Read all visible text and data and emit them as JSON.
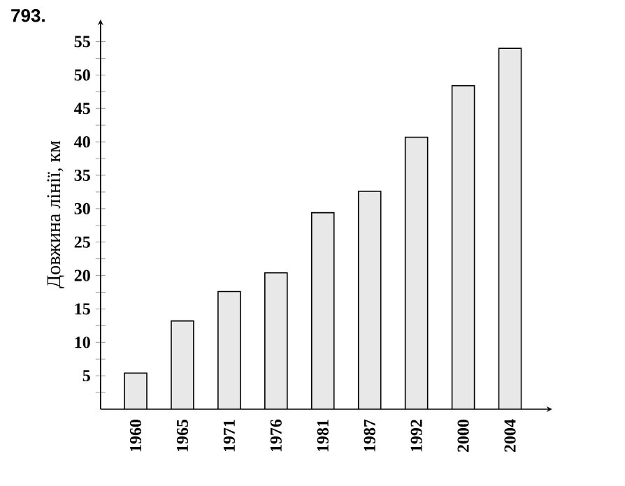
{
  "chart_data": {
    "type": "bar",
    "title": "793.",
    "ylabel": "Довжина лінії, км",
    "categories": [
      "1960",
      "1965",
      "1971",
      "1976",
      "1981",
      "1987",
      "1992",
      "2000",
      "2004"
    ],
    "values": [
      5.4,
      13.2,
      17.6,
      20.4,
      29.4,
      32.6,
      40.7,
      48.4,
      54.0
    ],
    "color": "#e8e8e8",
    "ylim": [
      0,
      58.3
    ],
    "yticks": [
      {
        "value": 2.5,
        "label": null
      },
      5,
      {
        "value": 7.5,
        "label": null
      },
      10,
      {
        "value": 12.5,
        "label": null
      },
      15,
      {
        "value": 17.5,
        "label": null
      },
      20,
      {
        "value": 22.5,
        "label": null
      },
      25,
      {
        "value": 27.5,
        "label": null
      },
      30,
      {
        "value": 32.5,
        "label": null
      },
      35,
      {
        "value": 37.5,
        "label": null
      },
      40,
      {
        "value": 42.5,
        "label": null
      },
      45,
      {
        "value": 47.5,
        "label": null
      },
      50,
      {
        "value": 52.5,
        "label": null
      },
      55
    ],
    "grid": false
  }
}
